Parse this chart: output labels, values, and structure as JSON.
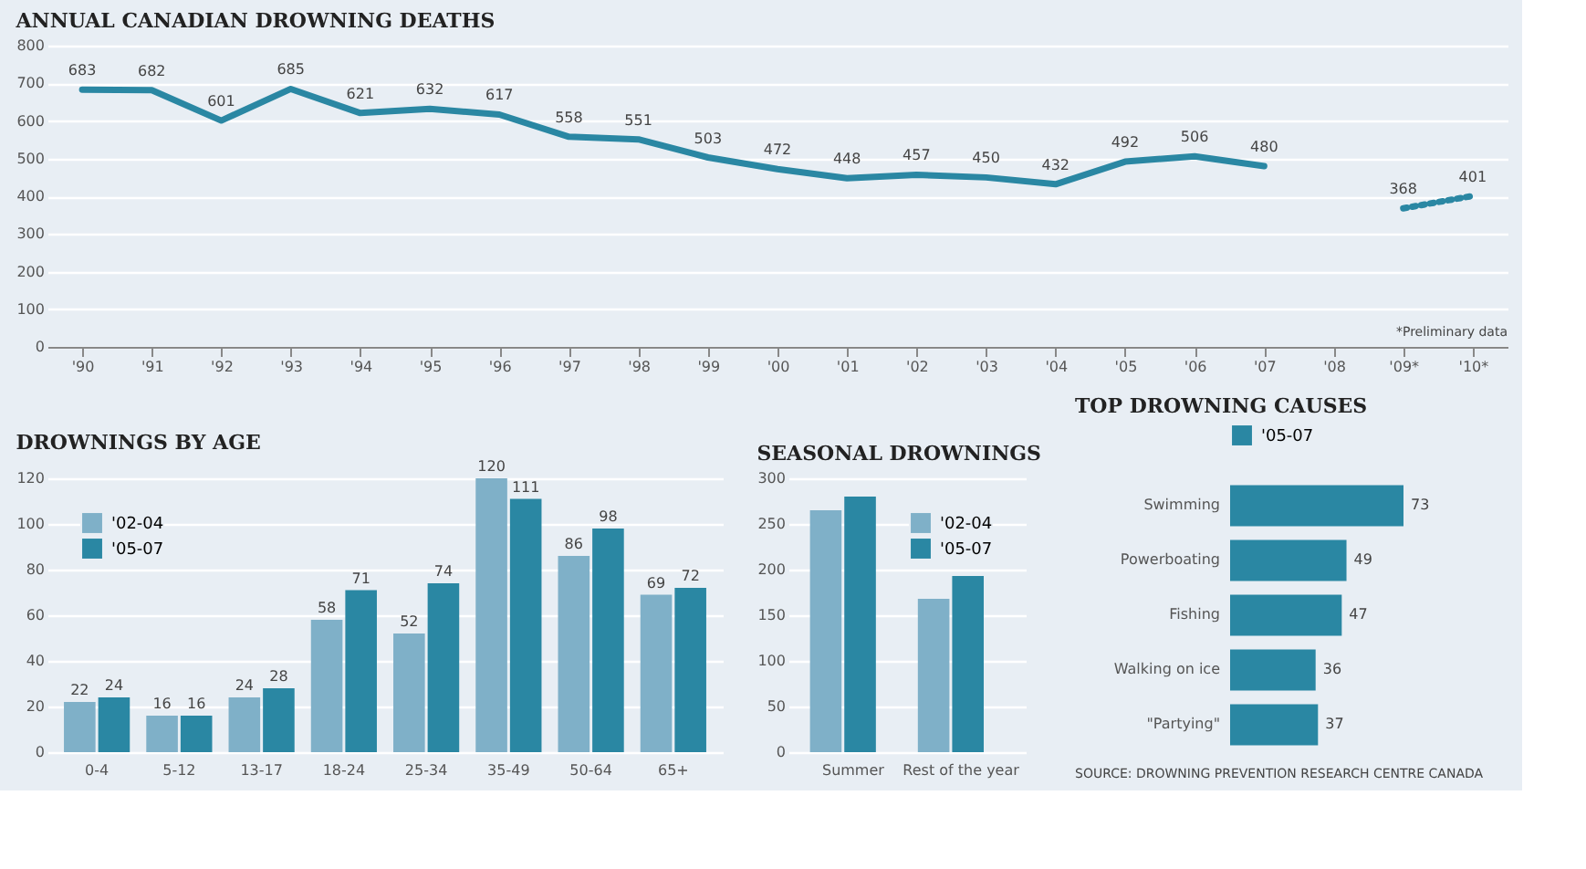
{
  "chart_data": [
    {
      "type": "line",
      "title": "ANNUAL CANADIAN DROWNING DEATHS",
      "categories": [
        "'90",
        "'91",
        "'92",
        "'93",
        "'94",
        "'95",
        "'96",
        "'97",
        "'98",
        "'99",
        "'00",
        "'01",
        "'02",
        "'03",
        "'04",
        "'05",
        "'06",
        "'07",
        "'08",
        "'09*",
        "'10*"
      ],
      "series": [
        {
          "color": "#2a87a3",
          "line_style": "solid",
          "values": [
            683,
            682,
            601,
            685,
            621,
            632,
            617,
            558,
            551,
            503,
            472,
            448,
            457,
            450,
            432,
            492,
            506,
            480,
            null,
            null,
            null
          ]
        },
        {
          "color": "#2a87a3",
          "line_style": "dotted",
          "values": [
            null,
            null,
            null,
            null,
            null,
            null,
            null,
            null,
            null,
            null,
            null,
            null,
            null,
            null,
            null,
            null,
            null,
            null,
            null,
            368,
            401
          ]
        }
      ],
      "ylim": [
        0,
        800
      ],
      "yticks": [
        0,
        100,
        200,
        300,
        400,
        500,
        600,
        700,
        800
      ],
      "grid": "y",
      "data_labels": true,
      "marker": "none",
      "annotations": [
        "*Preliminary data"
      ]
    },
    {
      "type": "bar",
      "title": "DROWNINGS BY AGE",
      "categories": [
        "0-4",
        "5-12",
        "13-17",
        "18-24",
        "25-34",
        "35-49",
        "50-64",
        "65+"
      ],
      "series": [
        {
          "name": "'02-04",
          "color": "#7fb0c8",
          "values": [
            22,
            16,
            24,
            58,
            52,
            120,
            86,
            69
          ]
        },
        {
          "name": "'05-07",
          "color": "#2a87a3",
          "values": [
            24,
            16,
            28,
            71,
            74,
            111,
            98,
            72
          ]
        }
      ],
      "ylim": [
        0,
        120
      ],
      "yticks": [
        0,
        20,
        40,
        60,
        80,
        100,
        120
      ],
      "grid": "y",
      "data_labels": true,
      "legend": "top left"
    },
    {
      "type": "bar",
      "title": "SEASONAL DROWNINGS",
      "categories": [
        "Summer",
        "Rest of the year"
      ],
      "series": [
        {
          "name": "'02-04",
          "color": "#7fb0c8",
          "values": [
            265,
            168
          ]
        },
        {
          "name": "'05-07",
          "color": "#2a87a3",
          "values": [
            280,
            193
          ]
        }
      ],
      "ylim": [
        0,
        300
      ],
      "yticks": [
        0,
        50,
        100,
        150,
        200,
        250,
        300
      ],
      "grid": "y",
      "legend": "top right"
    },
    {
      "type": "bar",
      "orientation": "horizontal",
      "title": "TOP DROWNING CAUSES",
      "categories": [
        "Swimming",
        "Powerboating",
        "Fishing",
        "Walking on ice",
        "\"Partying\""
      ],
      "series": [
        {
          "name": "'05-07",
          "color": "#2a87a3",
          "values": [
            73,
            49,
            47,
            36,
            37
          ]
        }
      ],
      "data_labels": true,
      "legend": "top",
      "tick_labels": "y",
      "annotations": [
        "SOURCE: DROWNING PREVENTION RESEARCH CENTRE CANADA"
      ]
    }
  ]
}
